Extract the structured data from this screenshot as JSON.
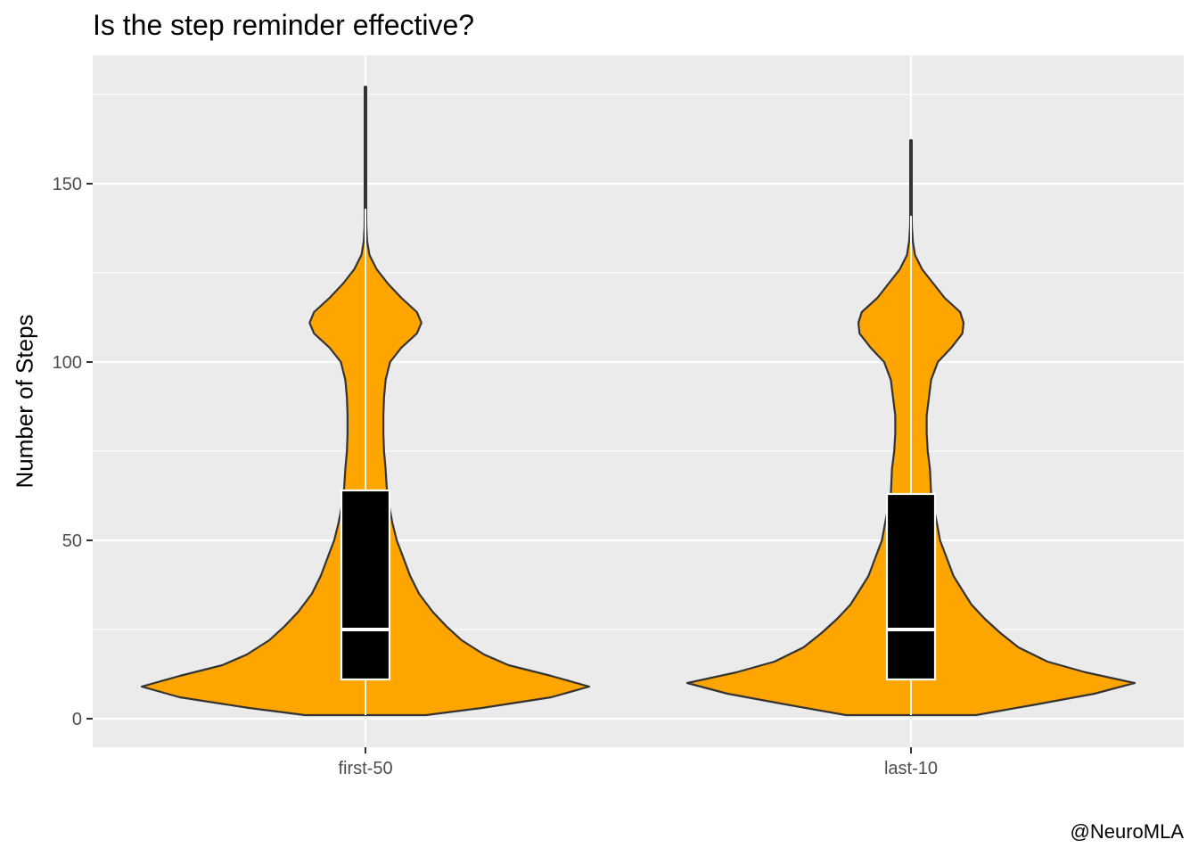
{
  "chart_data": {
    "type": "violin",
    "title": "Is the step reminder effective?",
    "xlabel": "",
    "ylabel": "Number of Steps",
    "caption": "@NeuroMLA",
    "categories": [
      "first-50",
      "last-10"
    ],
    "ylim": [
      -8,
      186
    ],
    "yticks": [
      0,
      50,
      100,
      150
    ],
    "grid": true,
    "fill_color": "#FFA500",
    "box_color": "#000000",
    "box_border_color": "#FFFFFF",
    "outline_color": "#333333",
    "panel_color": "#EBEBEB",
    "series": [
      {
        "category": "first-50",
        "box": {
          "q1": 11,
          "median": 25,
          "q3": 64,
          "whisker_low": 1,
          "whisker_high": 143
        },
        "outliers_range": [
          143,
          177
        ],
        "density": [
          [
            1,
            0.27
          ],
          [
            3,
            0.52
          ],
          [
            6,
            0.83
          ],
          [
            9,
            1.0
          ],
          [
            12,
            0.83
          ],
          [
            15,
            0.64
          ],
          [
            18,
            0.53
          ],
          [
            22,
            0.43
          ],
          [
            26,
            0.36
          ],
          [
            30,
            0.3
          ],
          [
            35,
            0.24
          ],
          [
            40,
            0.2
          ],
          [
            45,
            0.17
          ],
          [
            50,
            0.14
          ],
          [
            55,
            0.12
          ],
          [
            60,
            0.105
          ],
          [
            65,
            0.095
          ],
          [
            70,
            0.09
          ],
          [
            75,
            0.083
          ],
          [
            80,
            0.08
          ],
          [
            85,
            0.08
          ],
          [
            90,
            0.083
          ],
          [
            95,
            0.09
          ],
          [
            100,
            0.11
          ],
          [
            104,
            0.16
          ],
          [
            108,
            0.23
          ],
          [
            111,
            0.25
          ],
          [
            114,
            0.23
          ],
          [
            118,
            0.16
          ],
          [
            122,
            0.1
          ],
          [
            126,
            0.05
          ],
          [
            130,
            0.018
          ],
          [
            134,
            0.007
          ],
          [
            138,
            0.004
          ],
          [
            143,
            0.003
          ],
          [
            150,
            0.003
          ],
          [
            155,
            0.003
          ],
          [
            160,
            0.002
          ],
          [
            170,
            0.002
          ],
          [
            177,
            0.0
          ]
        ]
      },
      {
        "category": "last-10",
        "box": {
          "q1": 11,
          "median": 25,
          "q3": 63,
          "whisker_low": 1,
          "whisker_high": 141
        },
        "outliers_range": [
          141,
          162
        ],
        "density": [
          [
            1,
            0.29
          ],
          [
            4,
            0.56
          ],
          [
            7,
            0.82
          ],
          [
            10,
            1.0
          ],
          [
            13,
            0.78
          ],
          [
            16,
            0.61
          ],
          [
            20,
            0.48
          ],
          [
            24,
            0.4
          ],
          [
            28,
            0.33
          ],
          [
            32,
            0.27
          ],
          [
            36,
            0.23
          ],
          [
            40,
            0.19
          ],
          [
            45,
            0.16
          ],
          [
            50,
            0.13
          ],
          [
            55,
            0.115
          ],
          [
            60,
            0.1
          ],
          [
            63,
            0.09
          ],
          [
            70,
            0.085
          ],
          [
            75,
            0.075
          ],
          [
            80,
            0.07
          ],
          [
            85,
            0.07
          ],
          [
            90,
            0.08
          ],
          [
            95,
            0.09
          ],
          [
            100,
            0.12
          ],
          [
            104,
            0.18
          ],
          [
            108,
            0.23
          ],
          [
            111,
            0.235
          ],
          [
            114,
            0.22
          ],
          [
            118,
            0.15
          ],
          [
            122,
            0.1
          ],
          [
            126,
            0.05
          ],
          [
            130,
            0.018
          ],
          [
            134,
            0.008
          ],
          [
            138,
            0.004
          ],
          [
            141,
            0.003
          ],
          [
            150,
            0.003
          ],
          [
            155,
            0.003
          ],
          [
            160,
            0.002
          ],
          [
            162,
            0.0
          ]
        ]
      }
    ]
  }
}
